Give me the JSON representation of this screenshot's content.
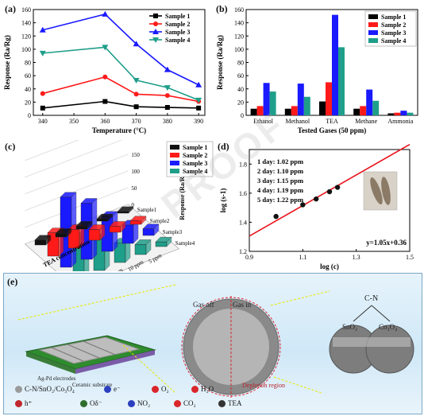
{
  "chart_data": [
    {
      "panel": "(a)",
      "type": "line",
      "xlabel": "Temperature (°C)",
      "ylabel": "Response (Ra/Rg)",
      "x": [
        340,
        360,
        370,
        380,
        390
      ],
      "xticks": [
        "340",
        "350",
        "360",
        "370",
        "380",
        "390"
      ],
      "yticks": [
        "0",
        "20",
        "40",
        "60",
        "80",
        "100",
        "120",
        "140",
        "160"
      ],
      "xlim": [
        337,
        392
      ],
      "ylim": [
        0,
        160
      ],
      "series": [
        {
          "name": "Sample 1",
          "values": [
            11,
            21,
            13,
            12,
            11
          ],
          "color": "#000000",
          "marker": "square"
        },
        {
          "name": "Sample 2",
          "values": [
            33,
            58,
            32,
            30,
            21
          ],
          "color": "#ff1a1a",
          "marker": "circle"
        },
        {
          "name": "Sample 3",
          "values": [
            129,
            153,
            108,
            69,
            46
          ],
          "color": "#1a1aff",
          "marker": "triangle"
        },
        {
          "name": "Sample 4",
          "values": [
            94,
            103,
            53,
            42,
            23
          ],
          "color": "#1f9e8a",
          "marker": "inv-triangle"
        }
      ],
      "legend": "top-right"
    },
    {
      "panel": "(b)",
      "type": "bar",
      "xlabel": "Tested Gases (50 ppm)",
      "ylabel": "Response (Ra/Rg)",
      "categories": [
        "Ethanol",
        "Methanol",
        "TEA",
        "Methane",
        "Ammonia"
      ],
      "yticks": [
        "0",
        "20",
        "40",
        "60",
        "80",
        "100",
        "120",
        "140",
        "160"
      ],
      "ylim": [
        0,
        160
      ],
      "series": [
        {
          "name": "Sample 1",
          "values": [
            10,
            10,
            21,
            10,
            3
          ],
          "color": "#000000"
        },
        {
          "name": "Sample 2",
          "values": [
            14,
            14,
            50,
            14,
            4
          ],
          "color": "#ff1a1a"
        },
        {
          "name": "Sample 3",
          "values": [
            49,
            48,
            152,
            39,
            7
          ],
          "color": "#1a1aff"
        },
        {
          "name": "Sample 4",
          "values": [
            36,
            28,
            103,
            22,
            4
          ],
          "color": "#1f9e8a"
        }
      ],
      "legend": "top-right"
    },
    {
      "panel": "(c)",
      "type": "bar",
      "xlabel": "TEA concentration",
      "zlabel": "Response (Ra/Rg)",
      "categories": [
        "75 ppm",
        "50 ppm",
        "25 ppm",
        "10 ppm",
        "5 ppm"
      ],
      "depth_labels": [
        "Sample1",
        "Sample2",
        "Sample3",
        "Sample4"
      ],
      "zticks": [
        "0",
        "50",
        "100",
        "150",
        "200",
        "250"
      ],
      "series": [
        {
          "name": "Sample 1",
          "values": [
            15,
            11,
            9,
            7,
            5
          ],
          "color": "#111111"
        },
        {
          "name": "Sample 2",
          "values": [
            70,
            56,
            32,
            18,
            10
          ],
          "color": "#ff1a1a"
        },
        {
          "name": "Sample 3",
          "values": [
            210,
            168,
            105,
            55,
            20
          ],
          "color": "#1a1aff"
        },
        {
          "name": "Sample 4",
          "values": [
            125,
            95,
            58,
            30,
            14
          ],
          "color": "#1f9e8a"
        }
      ],
      "legend": "top-right"
    },
    {
      "panel": "(d)",
      "type": "scatter",
      "xlabel": "log (c)",
      "ylabel": "log (s-1)",
      "xticks": [
        "0.9",
        "1.1",
        "1.3",
        "1.5"
      ],
      "yticks": [
        "1.2",
        "1.4",
        "1.6",
        "1.8"
      ],
      "xlim": [
        0.9,
        1.5
      ],
      "ylim": [
        1.2,
        1.9
      ],
      "points": [
        {
          "x": 1.0,
          "y": 1.44
        },
        {
          "x": 1.1,
          "y": 1.52
        },
        {
          "x": 1.15,
          "y": 1.56
        },
        {
          "x": 1.2,
          "y": 1.61
        },
        {
          "x": 1.23,
          "y": 1.64
        }
      ],
      "fit": {
        "slope": 1.05,
        "intercept": 0.36,
        "label": "y=1.05x+0.36",
        "color": "#e8141c"
      },
      "annotations": [
        "1 day: 1.02 ppm",
        "2 day: 1.10 ppm",
        "3 day: 1.15 ppm",
        "4 day: 1.19 ppm",
        "5 day: 1.22 ppm"
      ]
    }
  ],
  "panels": {
    "a": "(a)",
    "b": "(b)",
    "c": "(c)",
    "d": "(d)",
    "e": "(e)"
  },
  "scheme": {
    "electrode": "Ag-Pd electrodes",
    "substrate": "Ceramic substrate",
    "gas_off": "Gas off",
    "gas_in": "Gas in",
    "depletion": "Depletion region",
    "cn": "C-N",
    "sno2": "SnO₂",
    "co3o4": "Co₃O₄",
    "legend": [
      {
        "label": "C-N/SnO₂/Co₃O₄",
        "color": "#9a9a9a"
      },
      {
        "label": "e⁻",
        "color": "#2b3fbf"
      },
      {
        "label": "O₂",
        "color": "#d9262b"
      },
      {
        "label": "H₂O",
        "color": "#d9262b"
      },
      {
        "label": "h⁺",
        "color": "#c0282d"
      },
      {
        "label": "Oδ⁻",
        "color": "#2d6e2d"
      },
      {
        "label": "NO₂",
        "color": "#2b3fbf"
      },
      {
        "label": "CO₂",
        "color": "#d9262b"
      },
      {
        "label": "TEA",
        "color": "#333333"
      }
    ]
  }
}
